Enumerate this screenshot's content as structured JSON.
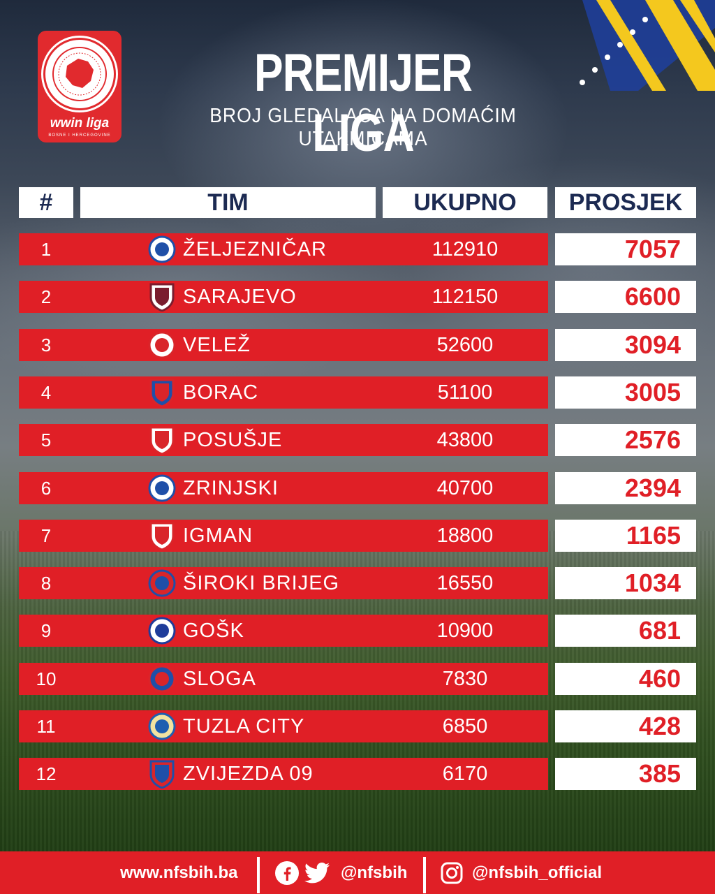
{
  "header": {
    "title": "PREMIJER LIGA",
    "subtitle": "BROJ GLEDALACA NA DOMAĆIM UTAKMICAMA",
    "logo_word": "wwin liga",
    "logo_sub": "BOSNE I HERCEGOVINE"
  },
  "columns": {
    "rank": "#",
    "team": "TIM",
    "total": "UKUPNO",
    "average": "PROSJEK"
  },
  "rows": [
    {
      "rank": "1",
      "team": "ŽELJEZNIČAR",
      "total": "112910",
      "average": "7057"
    },
    {
      "rank": "2",
      "team": "SARAJEVO",
      "total": "112150",
      "average": "6600"
    },
    {
      "rank": "3",
      "team": "VELEŽ",
      "total": "52600",
      "average": "3094"
    },
    {
      "rank": "4",
      "team": "BORAC",
      "total": "51100",
      "average": "3005"
    },
    {
      "rank": "5",
      "team": "POSUŠJE",
      "total": "43800",
      "average": "2576"
    },
    {
      "rank": "6",
      "team": "ZRINJSKI",
      "total": "40700",
      "average": "2394"
    },
    {
      "rank": "7",
      "team": "IGMAN",
      "total": "18800",
      "average": "1165"
    },
    {
      "rank": "8",
      "team": "ŠIROKI BRIJEG",
      "total": "16550",
      "average": "1034"
    },
    {
      "rank": "9",
      "team": "GOŠK",
      "total": "10900",
      "average": "681"
    },
    {
      "rank": "10",
      "team": "SLOGA",
      "total": "7830",
      "average": "460"
    },
    {
      "rank": "11",
      "team": "TUZLA CITY",
      "total": "6850",
      "average": "428"
    },
    {
      "rank": "12",
      "team": "ZVIJEZDA 09",
      "total": "6170",
      "average": "385"
    }
  ],
  "crest_icons": [
    "zeljeznicar-crest-icon",
    "sarajevo-crest-icon",
    "velez-crest-icon",
    "borac-crest-icon",
    "posusje-crest-icon",
    "zrinjski-crest-icon",
    "igman-crest-icon",
    "siroki-brijeg-crest-icon",
    "gosk-crest-icon",
    "sloga-crest-icon",
    "tuzla-city-crest-icon",
    "zvijezda-09-crest-icon"
  ],
  "crest_colors": [
    [
      "#1f4fa8",
      "#ffffff"
    ],
    [
      "#7a1c2e",
      "#ffffff"
    ],
    [
      "#d9252a",
      "#ffffff"
    ],
    [
      "#d9252a",
      "#1f4fa8"
    ],
    [
      "#d9252a",
      "#ffffff"
    ],
    [
      "#1f4fa8",
      "#ffffff"
    ],
    [
      "#d9252a",
      "#ffffff"
    ],
    [
      "#1f4fa8",
      "#d9252a"
    ],
    [
      "#1f3c9a",
      "#ffffff"
    ],
    [
      "#d9252a",
      "#1f4fa8"
    ],
    [
      "#1f5fb0",
      "#f2e3a0"
    ],
    [
      "#1f4fa8",
      "#d9252a"
    ]
  ],
  "footer": {
    "website": "www.nfsbih.ba",
    "social_handle": "@nfsbih",
    "instagram_handle": "@nfsbih_official"
  },
  "colors": {
    "row_red": "#e01f26",
    "header_text": "#1c2a52",
    "average_text": "#e01f26",
    "flag_blue": "#1f3f9e",
    "flag_yellow": "#f4c81e"
  }
}
